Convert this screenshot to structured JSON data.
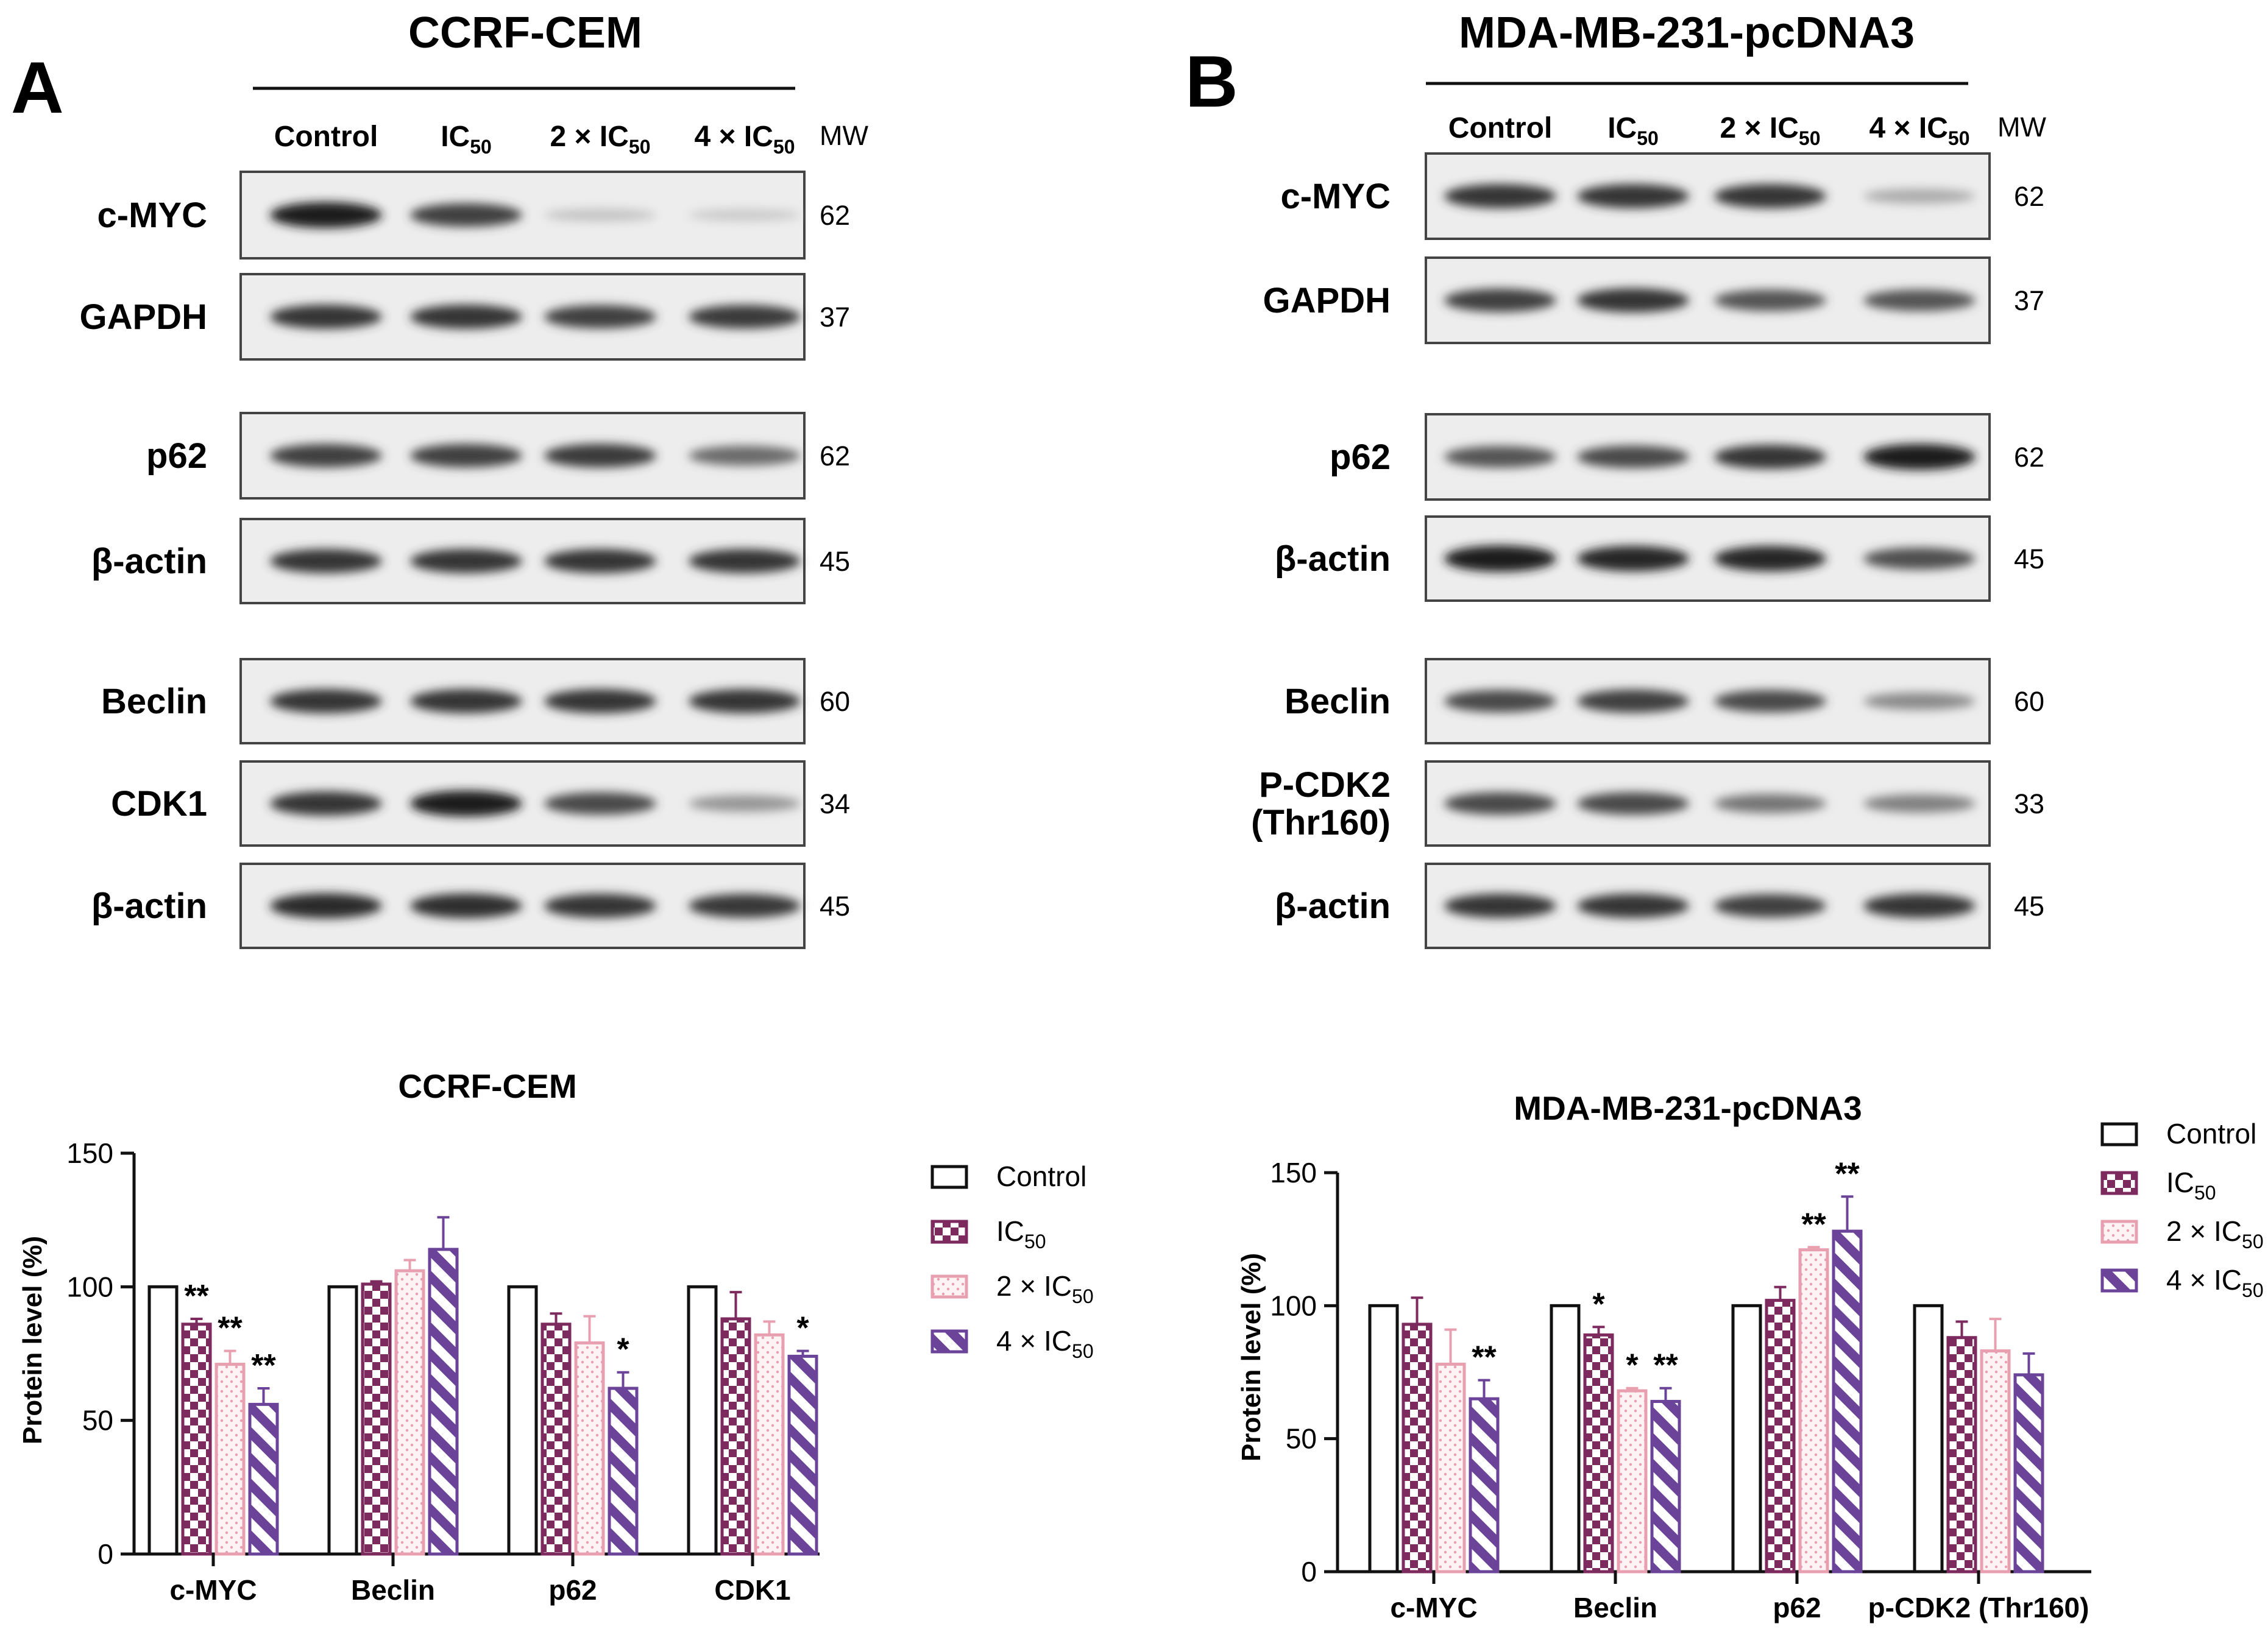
{
  "panels": [
    {
      "letter": "A",
      "title": "CCRF-CEM",
      "lanes": [
        {
          "main": "Control",
          "sub": ""
        },
        {
          "main": "IC",
          "sub": "50"
        },
        {
          "main": "2 × IC",
          "sub": "50"
        },
        {
          "main": "4 × IC",
          "sub": "50"
        }
      ],
      "mw_header": "MW",
      "blots": [
        {
          "label": [
            "c-MYC"
          ],
          "mw": "62",
          "intensity": [
            0.95,
            0.8,
            0.18,
            0.15
          ]
        },
        {
          "label": [
            "GAPDH"
          ],
          "mw": "37",
          "intensity": [
            0.85,
            0.85,
            0.8,
            0.82
          ]
        },
        {
          "label": [
            "p62"
          ],
          "mw": "62",
          "intensity": [
            0.8,
            0.8,
            0.82,
            0.6
          ]
        },
        {
          "label": [
            "β-actin"
          ],
          "mw": "45",
          "intensity": [
            0.85,
            0.85,
            0.85,
            0.85
          ]
        },
        {
          "label": [
            "Beclin"
          ],
          "mw": "60",
          "intensity": [
            0.85,
            0.85,
            0.85,
            0.85
          ]
        },
        {
          "label": [
            "CDK1"
          ],
          "mw": "34",
          "intensity": [
            0.85,
            0.95,
            0.75,
            0.4
          ]
        },
        {
          "label": [
            "β-actin"
          ],
          "mw": "45",
          "intensity": [
            0.9,
            0.88,
            0.85,
            0.83
          ]
        }
      ]
    },
    {
      "letter": "B",
      "title": "MDA-MB-231-pcDNA3",
      "lanes": [
        {
          "main": "Control",
          "sub": ""
        },
        {
          "main": "IC",
          "sub": "50"
        },
        {
          "main": "2 × IC",
          "sub": "50"
        },
        {
          "main": "4 × IC",
          "sub": "50"
        }
      ],
      "mw_header": "MW",
      "blots": [
        {
          "label": [
            "c-MYC"
          ],
          "mw": "62",
          "intensity": [
            0.85,
            0.85,
            0.85,
            0.3
          ]
        },
        {
          "label": [
            "GAPDH"
          ],
          "mw": "37",
          "intensity": [
            0.8,
            0.85,
            0.7,
            0.7
          ]
        },
        {
          "label": [
            "p62"
          ],
          "mw": "62",
          "intensity": [
            0.7,
            0.75,
            0.85,
            0.95
          ]
        },
        {
          "label": [
            "β-actin"
          ],
          "mw": "45",
          "intensity": [
            0.97,
            0.92,
            0.92,
            0.72
          ]
        },
        {
          "label": [
            "Beclin"
          ],
          "mw": "60",
          "intensity": [
            0.75,
            0.8,
            0.75,
            0.45
          ]
        },
        {
          "label": [
            "P-CDK2",
            "(Thr160)"
          ],
          "mw": "33",
          "intensity": [
            0.75,
            0.75,
            0.55,
            0.5
          ]
        },
        {
          "label": [
            "β-actin"
          ],
          "mw": "45",
          "intensity": [
            0.85,
            0.85,
            0.8,
            0.85
          ]
        }
      ]
    }
  ],
  "legend": [
    {
      "main": "Control",
      "sub": "",
      "pattern": "white"
    },
    {
      "main": "IC",
      "sub": "50",
      "pattern": "checker"
    },
    {
      "main": "2 × IC",
      "sub": "50",
      "pattern": "dots"
    },
    {
      "main": "4 × IC",
      "sub": "50",
      "pattern": "stripes"
    }
  ],
  "colors": {
    "control": "#111111",
    "ic50": "#7d2a5f",
    "ic50_2x": "#e8a0b0",
    "ic50_4x": "#6b4499"
  },
  "chart_data": [
    {
      "type": "bar",
      "title": "CCRF-CEM",
      "xlabel": "",
      "ylabel": "Protein level (%)",
      "ylim": [
        0,
        150
      ],
      "yticks": [
        "0",
        "50",
        "100",
        "150"
      ],
      "categories": [
        "c-MYC",
        "Beclin",
        "p62",
        "CDK1"
      ],
      "series": [
        {
          "name": "Control",
          "values": [
            100,
            100,
            100,
            100
          ],
          "errors": [
            0,
            0,
            0,
            0
          ],
          "sig": [
            "",
            "",
            "",
            ""
          ]
        },
        {
          "name": "IC50",
          "values": [
            86,
            101,
            86,
            88
          ],
          "errors": [
            2,
            1,
            4,
            10
          ],
          "sig": [
            "**",
            "",
            "",
            ""
          ]
        },
        {
          "name": "2 × IC50",
          "values": [
            71,
            106,
            79,
            82
          ],
          "errors": [
            5,
            4,
            10,
            5
          ],
          "sig": [
            "**",
            "",
            "",
            ""
          ]
        },
        {
          "name": "4 × IC50",
          "values": [
            56,
            114,
            62,
            74
          ],
          "errors": [
            6,
            12,
            6,
            2
          ],
          "sig": [
            "**",
            "",
            "*",
            "*"
          ]
        }
      ]
    },
    {
      "type": "bar",
      "title": "MDA-MB-231-pcDNA3",
      "xlabel": "",
      "ylabel": "Protein level (%)",
      "ylim": [
        0,
        150
      ],
      "yticks": [
        "0",
        "50",
        "100",
        "150"
      ],
      "categories": [
        "c-MYC",
        "Beclin",
        "p62",
        "p-CDK2 (Thr160)"
      ],
      "series": [
        {
          "name": "Control",
          "values": [
            100,
            100,
            100,
            100
          ],
          "errors": [
            0,
            0,
            0,
            0
          ],
          "sig": [
            "",
            "",
            "",
            ""
          ]
        },
        {
          "name": "IC50",
          "values": [
            93,
            89,
            102,
            88
          ],
          "errors": [
            10,
            3,
            5,
            6
          ],
          "sig": [
            "",
            "*",
            "",
            ""
          ]
        },
        {
          "name": "2 × IC50",
          "values": [
            78,
            68,
            121,
            83
          ],
          "errors": [
            13,
            1,
            1,
            12
          ],
          "sig": [
            "",
            "*",
            "**",
            ""
          ]
        },
        {
          "name": "4 × IC50",
          "values": [
            65,
            64,
            128,
            74
          ],
          "errors": [
            7,
            5,
            13,
            8
          ],
          "sig": [
            "**",
            "**",
            "**",
            ""
          ]
        }
      ]
    }
  ]
}
